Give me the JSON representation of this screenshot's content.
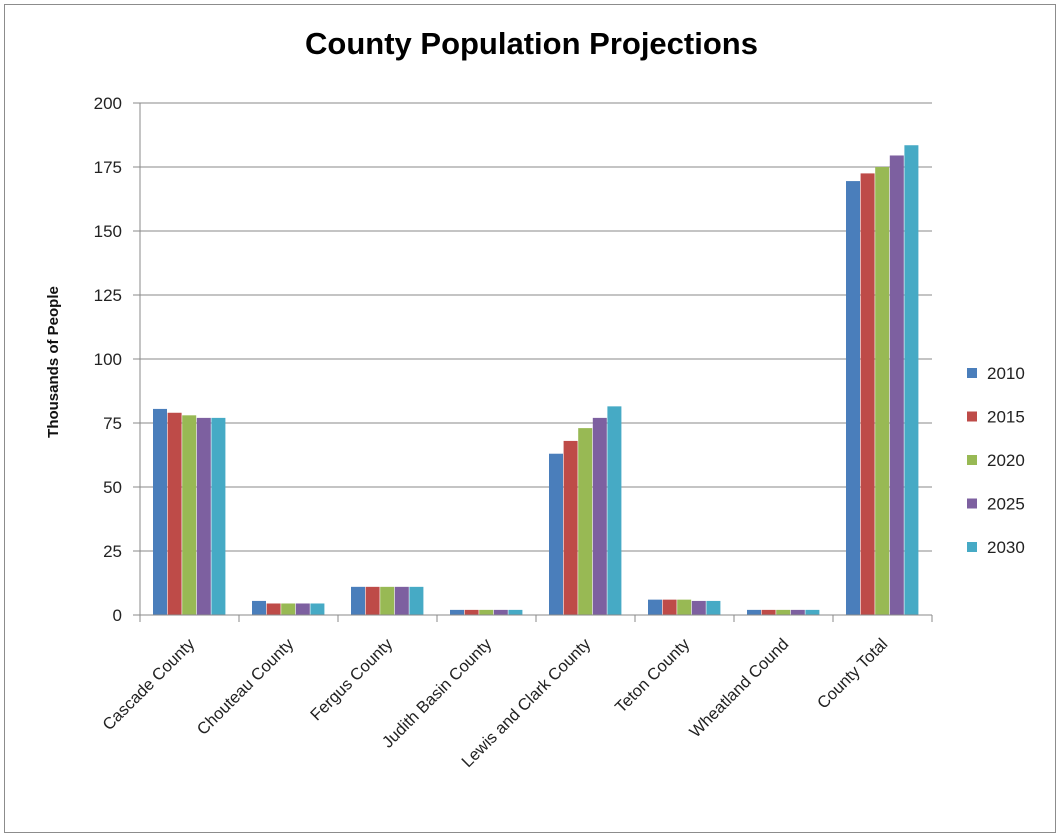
{
  "chart_data": {
    "type": "bar",
    "title": "County Population Projections",
    "xlabel": "",
    "ylabel": "Thousands of People",
    "ylim": [
      0,
      200
    ],
    "yticks": [
      0,
      25,
      50,
      75,
      100,
      125,
      150,
      175,
      200
    ],
    "grid": true,
    "legend_position": "right",
    "categories": [
      "Cascade County",
      "Chouteau County",
      "Fergus County",
      "Judith Basin County",
      "Lewis and Clark County",
      "Teton County",
      "Wheatland Cound",
      "County Total"
    ],
    "series": [
      {
        "name": "2010",
        "color": "#4a7ebb",
        "values": [
          80.5,
          5.5,
          11,
          2,
          63,
          6,
          2,
          169.5
        ]
      },
      {
        "name": "2015",
        "color": "#be4b48",
        "values": [
          79,
          4.5,
          11,
          2,
          68,
          6,
          2,
          172.5
        ]
      },
      {
        "name": "2020",
        "color": "#98b954",
        "values": [
          78,
          4.5,
          11,
          2,
          73,
          6,
          2,
          175
        ]
      },
      {
        "name": "2025",
        "color": "#7d60a0",
        "values": [
          77,
          4.5,
          11,
          2,
          77,
          5.5,
          2,
          179.5
        ]
      },
      {
        "name": "2030",
        "color": "#46aac5",
        "values": [
          77,
          4.5,
          11,
          2,
          81.5,
          5.5,
          2,
          183.5
        ]
      }
    ]
  }
}
